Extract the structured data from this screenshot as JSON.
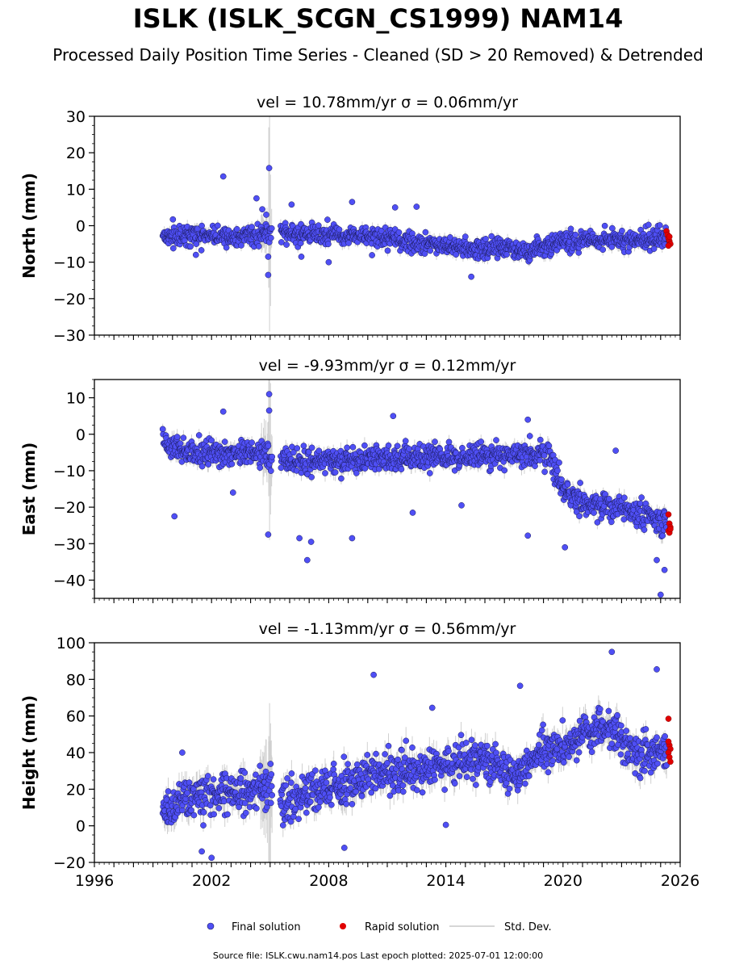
{
  "header": {
    "title": "ISLK (ISLK_SCGN_CS1999) NAM14",
    "subtitle": "Processed Daily Position Time Series - Cleaned (SD > 20 Removed) & Detrended"
  },
  "footer": {
    "source": "Source file: ISLK.cwu.nam14.pos  Last epoch plotted: 2025-07-01 12:00:00"
  },
  "colors": {
    "final": "#4f4ff5",
    "final_edge": "#1a1a5a",
    "rapid": "#e00000",
    "stddev": "#c8c8c8"
  },
  "chart_data": [
    {
      "type": "scatter",
      "panel": "north",
      "title": "vel = 10.78mm/yr   σ = 0.06mm/yr",
      "ylabel": "North (mm)",
      "xlabel": "",
      "xlim": [
        1996,
        2026
      ],
      "ylim": [
        -30,
        30
      ],
      "yticks": [
        -30,
        -20,
        -10,
        0,
        10,
        20,
        30
      ],
      "gaps": [
        [
          2005.1,
          2005.5
        ]
      ],
      "trend": [
        [
          1999.5,
          -3
        ],
        [
          2004.0,
          -2.5
        ],
        [
          2005.6,
          -2
        ],
        [
          2010.0,
          -3
        ],
        [
          2014.0,
          -5.5
        ],
        [
          2018.0,
          -6.5
        ],
        [
          2021.0,
          -4
        ],
        [
          2025.5,
          -3.5
        ]
      ],
      "scatter": 2.2,
      "outliers": [
        [
          2002.6,
          13.5
        ],
        [
          2004.95,
          15.8
        ],
        [
          2004.9,
          -13.5
        ],
        [
          2004.9,
          -8.5
        ],
        [
          2004.6,
          4.5
        ],
        [
          2004.8,
          3.0
        ],
        [
          2004.3,
          7.5
        ],
        [
          2006.1,
          5.8
        ],
        [
          2009.2,
          6.5
        ],
        [
          2011.4,
          5.0
        ],
        [
          2012.5,
          5.2
        ],
        [
          2001.2,
          -8.0
        ],
        [
          2006.6,
          -8.5
        ],
        [
          2015.3,
          -14.0
        ],
        [
          2008.0,
          -10.0
        ]
      ],
      "rapid": [
        [
          2025.3,
          -1.5
        ],
        [
          2025.35,
          -2.5
        ],
        [
          2025.4,
          -3.5
        ],
        [
          2025.45,
          -4.2
        ],
        [
          2025.5,
          -5.0
        ],
        [
          2025.4,
          -5.5
        ],
        [
          2025.45,
          -3.0
        ]
      ]
    },
    {
      "type": "scatter",
      "panel": "east",
      "title": "vel = -9.93mm/yr   σ = 0.12mm/yr",
      "ylabel": "East (mm)",
      "xlabel": "",
      "xlim": [
        1996,
        2026
      ],
      "ylim": [
        -45,
        15
      ],
      "yticks": [
        -40,
        -30,
        -20,
        -10,
        0,
        10
      ],
      "gaps": [
        [
          2005.1,
          2005.5
        ]
      ],
      "trend": [
        [
          1999.5,
          -2
        ],
        [
          2000.5,
          -5
        ],
        [
          2005.0,
          -5.5
        ],
        [
          2005.6,
          -7.5
        ],
        [
          2019.3,
          -5.5
        ],
        [
          2020.0,
          -15
        ],
        [
          2021.0,
          -19
        ],
        [
          2023.0,
          -20
        ],
        [
          2025.5,
          -25
        ]
      ],
      "scatter": 2.8,
      "outliers": [
        [
          2004.95,
          11.0
        ],
        [
          2004.95,
          6.5
        ],
        [
          2000.1,
          -22.5
        ],
        [
          2004.9,
          -27.5
        ],
        [
          2006.5,
          -28.5
        ],
        [
          2007.1,
          -29.5
        ],
        [
          2006.9,
          -34.5
        ],
        [
          2009.2,
          -28.5
        ],
        [
          2018.2,
          -27.8
        ],
        [
          2020.1,
          -31.0
        ],
        [
          2024.8,
          -34.5
        ],
        [
          2025.2,
          -37.2
        ],
        [
          2025.0,
          -44.0
        ],
        [
          2011.3,
          5.0
        ],
        [
          2002.6,
          6.2
        ],
        [
          2018.2,
          4.0
        ],
        [
          2022.7,
          -4.5
        ],
        [
          2003.1,
          -16.0
        ],
        [
          2012.3,
          -21.5
        ],
        [
          2014.8,
          -19.5
        ]
      ],
      "rapid": [
        [
          2025.4,
          -22
        ],
        [
          2025.45,
          -24.5
        ],
        [
          2025.5,
          -25.5
        ],
        [
          2025.4,
          -26.5
        ],
        [
          2025.45,
          -27.0
        ],
        [
          2025.5,
          -26.0
        ]
      ]
    },
    {
      "type": "scatter",
      "panel": "height",
      "title": "vel = -1.13mm/yr   σ = 0.56mm/yr",
      "ylabel": "Height (mm)",
      "xlabel": "",
      "xlim": [
        1996,
        2026
      ],
      "ylim": [
        -20,
        100
      ],
      "yticks": [
        -20,
        0,
        20,
        40,
        60,
        80,
        100
      ],
      "xticks": [
        1996,
        2002,
        2008,
        2014,
        2020,
        2026
      ],
      "gaps": [
        [
          2005.1,
          2005.5
        ]
      ],
      "trend": [
        [
          1999.5,
          8
        ],
        [
          2001.0,
          15
        ],
        [
          2005.0,
          22
        ],
        [
          2005.6,
          12
        ],
        [
          2008.0,
          22
        ],
        [
          2010.0,
          26
        ],
        [
          2014.0,
          34
        ],
        [
          2016.0,
          36
        ],
        [
          2017.5,
          28
        ],
        [
          2019.0,
          40
        ],
        [
          2022.5,
          56
        ],
        [
          2023.3,
          42
        ],
        [
          2025.5,
          40
        ]
      ],
      "scatter": 9.0,
      "outliers": [
        [
          2010.3,
          82.5
        ],
        [
          2017.8,
          76.5
        ],
        [
          2022.5,
          95.0
        ],
        [
          2024.8,
          85.5
        ],
        [
          2002.0,
          -17.5
        ],
        [
          2008.8,
          -12.0
        ],
        [
          2014.0,
          0.5
        ],
        [
          2001.5,
          -14.0
        ],
        [
          2013.3,
          64.5
        ],
        [
          2000.5,
          40.0
        ]
      ],
      "rapid": [
        [
          2025.4,
          58.5
        ],
        [
          2025.45,
          44.0
        ],
        [
          2025.5,
          42.0
        ],
        [
          2025.4,
          40.0
        ],
        [
          2025.45,
          37.5
        ],
        [
          2025.5,
          35.0
        ],
        [
          2025.4,
          46.0
        ]
      ]
    }
  ],
  "legend": {
    "final": "Final solution",
    "rapid": "Rapid solution",
    "stddev": "Std. Dev."
  }
}
